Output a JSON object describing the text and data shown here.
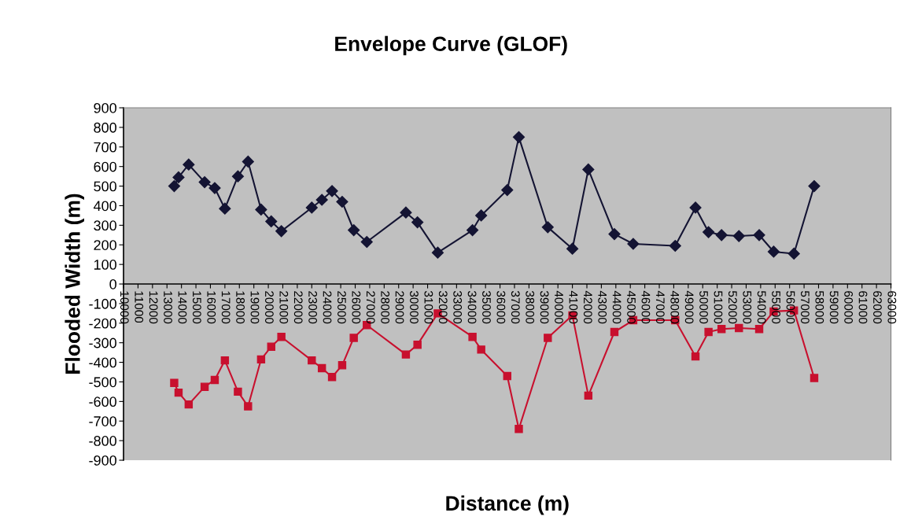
{
  "chart_data": {
    "type": "line",
    "title": "Envelope Curve (GLOF)",
    "xlabel": "Distance (m)",
    "ylabel": "Flooded Width (m)",
    "xlim": [
      10000,
      63000
    ],
    "xticks": [
      10000,
      11000,
      12000,
      13000,
      14000,
      15000,
      16000,
      17000,
      18000,
      19000,
      20000,
      21000,
      22000,
      23000,
      24000,
      25000,
      26000,
      27000,
      28000,
      29000,
      30000,
      31000,
      32000,
      33000,
      34000,
      35000,
      36000,
      37000,
      38000,
      39000,
      40000,
      41000,
      42000,
      43000,
      44000,
      45000,
      46000,
      47000,
      48000,
      49000,
      50000,
      51000,
      52000,
      53000,
      54000,
      55000,
      56000,
      57000,
      58000,
      59000,
      60000,
      61000,
      62000,
      63000
    ],
    "ylim": [
      -900,
      900
    ],
    "yticks": [
      -900,
      -800,
      -700,
      -600,
      -500,
      -400,
      -300,
      -200,
      -100,
      0,
      100,
      200,
      300,
      400,
      500,
      600,
      700,
      800,
      900
    ],
    "grid": false,
    "line_style": "solid",
    "x": [
      13500,
      13800,
      14500,
      15600,
      16300,
      17000,
      17900,
      18600,
      19500,
      20200,
      20900,
      23000,
      23700,
      24400,
      25100,
      25900,
      26800,
      29500,
      30300,
      31700,
      34100,
      34700,
      36500,
      37300,
      39300,
      41000,
      42100,
      43900,
      45200,
      48100,
      49500,
      50400,
      51300,
      52500,
      53900,
      54900,
      56300,
      57700
    ],
    "series": [
      {
        "color": "#141433",
        "marker": "diamond",
        "values": [
          500,
          545,
          610,
          520,
          490,
          385,
          550,
          625,
          380,
          320,
          270,
          390,
          430,
          475,
          420,
          275,
          215,
          365,
          315,
          160,
          275,
          350,
          480,
          750,
          290,
          180,
          585,
          255,
          205,
          195,
          390,
          265,
          250,
          245,
          250,
          165,
          155,
          500
        ]
      },
      {
        "color": "#c8102e",
        "marker": "square",
        "values": [
          -505,
          -555,
          -615,
          -525,
          -490,
          -390,
          -550,
          -625,
          -385,
          -320,
          -270,
          -390,
          -430,
          -475,
          -415,
          -275,
          -210,
          -360,
          -310,
          -150,
          -270,
          -335,
          -470,
          -740,
          -275,
          -160,
          -570,
          -245,
          -185,
          -185,
          -370,
          -245,
          -230,
          -225,
          -230,
          -140,
          -135,
          -480
        ]
      }
    ]
  }
}
